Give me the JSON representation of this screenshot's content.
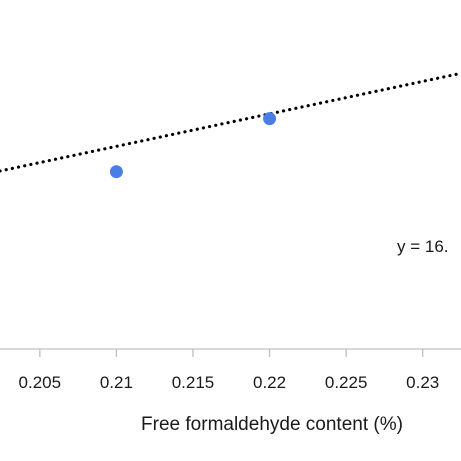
{
  "chart_data": {
    "type": "scatter",
    "xlabel": "Free formaldehyde content (%)",
    "x_ticks": [
      "0.205",
      "0.21",
      "0.215",
      "0.22",
      "0.225",
      "0.23"
    ],
    "x_tick_values": [
      0.205,
      0.21,
      0.215,
      0.22,
      0.225,
      0.23
    ],
    "xlim": [
      0.2024,
      0.2325
    ],
    "ylim": [
      0,
      1
    ],
    "grid": false,
    "legend": "none",
    "series": [
      {
        "points": [
          {
            "x": 0.21,
            "y": 0.508
          },
          {
            "x": 0.22,
            "y": 0.66
          }
        ],
        "color": "#4a7ee6"
      }
    ],
    "trendline": {
      "style": "dotted",
      "color": "#000000",
      "points": [
        {
          "x": 0.2024,
          "y": 0.51
        },
        {
          "x": 0.2325,
          "y": 0.79
        }
      ]
    },
    "annotations": [
      {
        "text": "y = 16."
      }
    ]
  }
}
